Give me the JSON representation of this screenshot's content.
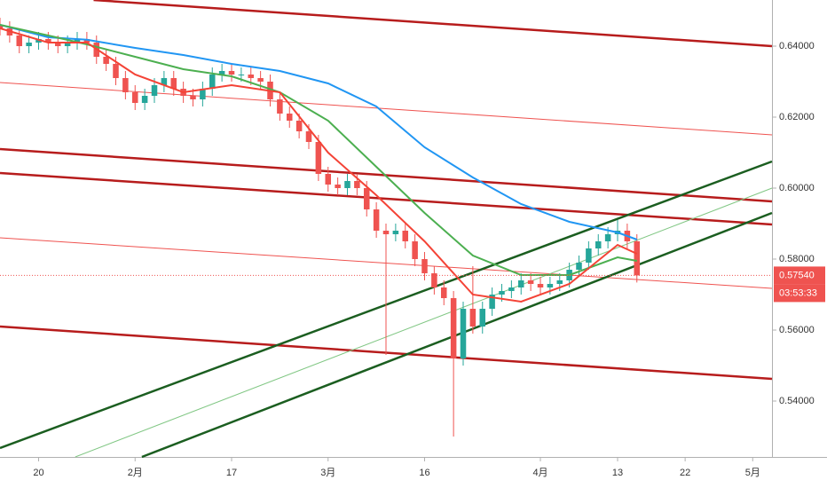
{
  "chart_data": {
    "type": "candlestick",
    "x": [
      -4,
      -3,
      -2,
      -1,
      0,
      1,
      2,
      3,
      4,
      5,
      6,
      7,
      8,
      9,
      10,
      11,
      12,
      13,
      14,
      15,
      16,
      17,
      18,
      19,
      20,
      21,
      22,
      23,
      24,
      25,
      26,
      27,
      28,
      29,
      30,
      31,
      32,
      33,
      34,
      35,
      36,
      37,
      38,
      39,
      40,
      41,
      42,
      43,
      44,
      45,
      46,
      47,
      48,
      49,
      50,
      51,
      52,
      53,
      54,
      55,
      56,
      57,
      58,
      59,
      60,
      61,
      62
    ],
    "open": [
      0.646,
      0.645,
      0.643,
      0.64,
      0.641,
      0.642,
      0.641,
      0.64,
      0.641,
      0.642,
      0.641,
      0.637,
      0.635,
      0.631,
      0.627,
      0.624,
      0.626,
      0.629,
      0.631,
      0.628,
      0.626,
      0.625,
      0.628,
      0.632,
      0.633,
      0.632,
      0.632,
      0.631,
      0.63,
      0.625,
      0.621,
      0.619,
      0.616,
      0.613,
      0.604,
      0.601,
      0.6,
      0.602,
      0.6,
      0.594,
      0.588,
      0.587,
      0.588,
      0.585,
      0.58,
      0.576,
      0.572,
      0.569,
      0.552,
      0.566,
      0.561,
      0.566,
      0.57,
      0.571,
      0.572,
      0.574,
      0.573,
      0.572,
      0.573,
      0.574,
      0.577,
      0.579,
      0.583,
      0.585,
      0.587,
      0.588,
      0.585
    ],
    "high": [
      0.648,
      0.647,
      0.645,
      0.643,
      0.644,
      0.644,
      0.643,
      0.643,
      0.644,
      0.644,
      0.643,
      0.639,
      0.637,
      0.633,
      0.629,
      0.628,
      0.631,
      0.633,
      0.633,
      0.63,
      0.628,
      0.63,
      0.634,
      0.635,
      0.635,
      0.634,
      0.634,
      0.633,
      0.632,
      0.627,
      0.623,
      0.621,
      0.618,
      0.615,
      0.606,
      0.603,
      0.604,
      0.604,
      0.602,
      0.596,
      0.59,
      0.59,
      0.59,
      0.587,
      0.582,
      0.578,
      0.574,
      0.571,
      0.568,
      0.578,
      0.568,
      0.572,
      0.573,
      0.574,
      0.576,
      0.576,
      0.575,
      0.575,
      0.576,
      0.579,
      0.581,
      0.585,
      0.587,
      0.589,
      0.591,
      0.59,
      0.587
    ],
    "low": [
      0.643,
      0.641,
      0.638,
      0.638,
      0.639,
      0.639,
      0.638,
      0.638,
      0.639,
      0.639,
      0.635,
      0.633,
      0.629,
      0.625,
      0.622,
      0.622,
      0.624,
      0.627,
      0.626,
      0.624,
      0.623,
      0.623,
      0.626,
      0.63,
      0.63,
      0.63,
      0.629,
      0.628,
      0.623,
      0.619,
      0.617,
      0.614,
      0.611,
      0.602,
      0.599,
      0.598,
      0.598,
      0.598,
      0.592,
      0.586,
      0.553,
      0.585,
      0.583,
      0.578,
      0.574,
      0.57,
      0.567,
      0.53,
      0.55,
      0.559,
      0.559,
      0.564,
      0.568,
      0.569,
      0.57,
      0.571,
      0.57,
      0.57,
      0.571,
      0.572,
      0.575,
      0.577,
      0.581,
      0.583,
      0.585,
      0.583,
      0.5734
    ],
    "close": [
      0.645,
      0.643,
      0.64,
      0.641,
      0.642,
      0.641,
      0.64,
      0.641,
      0.642,
      0.641,
      0.637,
      0.635,
      0.631,
      0.627,
      0.624,
      0.626,
      0.629,
      0.631,
      0.628,
      0.626,
      0.625,
      0.628,
      0.632,
      0.633,
      0.632,
      0.632,
      0.631,
      0.63,
      0.625,
      0.621,
      0.619,
      0.616,
      0.613,
      0.604,
      0.601,
      0.6,
      0.602,
      0.6,
      0.594,
      0.588,
      0.587,
      0.588,
      0.585,
      0.58,
      0.576,
      0.572,
      0.569,
      0.552,
      0.566,
      0.561,
      0.566,
      0.57,
      0.571,
      0.572,
      0.574,
      0.573,
      0.572,
      0.573,
      0.574,
      0.577,
      0.579,
      0.583,
      0.585,
      0.587,
      0.588,
      0.585,
      0.5754
    ],
    "up_color": "#26a69a",
    "down_color": "#ef5350",
    "series": [
      {
        "color": "#2196f3",
        "x": [
          -4,
          1,
          5,
          10,
          15,
          20,
          25,
          30,
          35,
          40,
          45,
          50,
          55,
          60,
          62
        ],
        "values": [
          0.646,
          0.6425,
          0.6418,
          0.6395,
          0.6375,
          0.635,
          0.633,
          0.6295,
          0.623,
          0.6115,
          0.603,
          0.5955,
          0.5905,
          0.5875,
          0.5855
        ]
      },
      {
        "color": "#4caf50",
        "x": [
          -4,
          1,
          5,
          10,
          15,
          20,
          25,
          30,
          35,
          40,
          45,
          50,
          55,
          60,
          62
        ],
        "values": [
          0.646,
          0.643,
          0.6405,
          0.637,
          0.6335,
          0.6315,
          0.627,
          0.619,
          0.606,
          0.593,
          0.581,
          0.5755,
          0.5755,
          0.5805,
          0.5795
        ]
      },
      {
        "color": "#f44336",
        "x": [
          -4,
          1,
          5,
          10,
          15,
          20,
          25,
          30,
          35,
          40,
          45,
          50,
          55,
          60,
          62
        ],
        "values": [
          0.645,
          0.641,
          0.641,
          0.632,
          0.627,
          0.629,
          0.627,
          0.61,
          0.598,
          0.585,
          0.57,
          0.568,
          0.573,
          0.584,
          0.5815
        ]
      }
    ],
    "trend_lines": [
      {
        "color": "#b71c1c",
        "width": 2.5,
        "x": [
          5.7,
          76
        ],
        "values": [
          0.653,
          0.64
        ]
      },
      {
        "color": "#ef5350",
        "width": 1,
        "x": [
          -4,
          76
        ],
        "values": [
          0.62975,
          0.615
        ]
      },
      {
        "color": "#b71c1c",
        "width": 2.5,
        "x": [
          -4,
          76
        ],
        "values": [
          0.611,
          0.59625
        ]
      },
      {
        "color": "#b71c1c",
        "width": 2.5,
        "x": [
          -4,
          76
        ],
        "values": [
          0.60425,
          0.58975
        ]
      },
      {
        "color": "#ef5350",
        "width": 1,
        "x": [
          -4,
          76
        ],
        "values": [
          0.586,
          0.57175
        ]
      },
      {
        "color": "#b71c1c",
        "width": 2.5,
        "x": [
          -4,
          76
        ],
        "values": [
          0.561,
          0.54625
        ]
      },
      {
        "color": "#1b5e20",
        "width": 2.5,
        "x": [
          -4,
          76
        ],
        "values": [
          0.52675,
          0.6075
        ]
      },
      {
        "color": "#81c784",
        "width": 1,
        "x": [
          3.8,
          76
        ],
        "values": [
          0.52425,
          0.6
        ]
      },
      {
        "color": "#1b5e20",
        "width": 2.5,
        "x": [
          10.7,
          76
        ],
        "values": [
          0.52425,
          0.593
        ]
      }
    ],
    "xlim": [
      -4,
      76
    ],
    "ylim": [
      0.52425,
      0.653
    ],
    "xticks": [
      {
        "value": 0,
        "label": "20"
      },
      {
        "value": 10,
        "label": "2月"
      },
      {
        "value": 20,
        "label": "17"
      },
      {
        "value": 30,
        "label": "3月"
      },
      {
        "value": 40,
        "label": "16"
      },
      {
        "value": 52,
        "label": "4月"
      },
      {
        "value": 60,
        "label": "13"
      },
      {
        "value": 67,
        "label": "22"
      },
      {
        "value": 74,
        "label": "5月"
      }
    ],
    "yticks": [
      {
        "value": 0.54,
        "label": "0.54000"
      },
      {
        "value": 0.56,
        "label": "0.56000"
      },
      {
        "value": 0.58,
        "label": "0.58000"
      },
      {
        "value": 0.6,
        "label": "0.60000"
      },
      {
        "value": 0.62,
        "label": "0.62000"
      },
      {
        "value": 0.64,
        "label": "0.64000"
      }
    ],
    "last_price": {
      "value": 0.5754,
      "label": "0.57540"
    },
    "countdown": "03:53:33"
  }
}
